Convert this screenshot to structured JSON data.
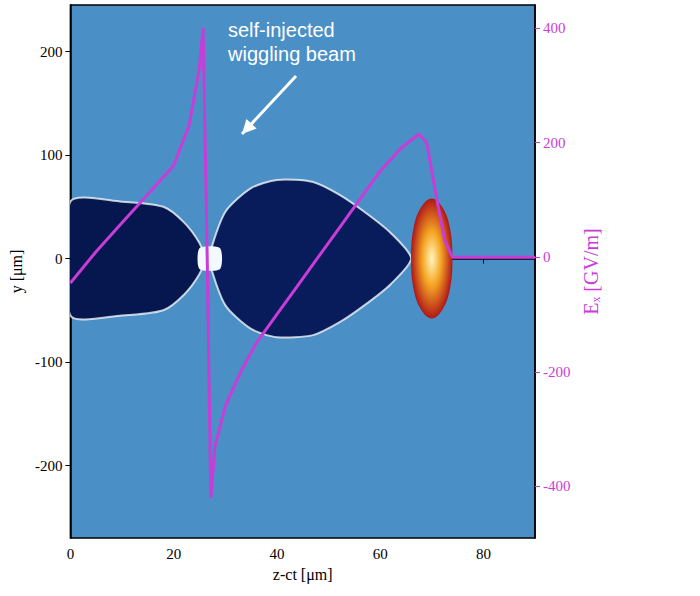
{
  "chart_data": {
    "type": "line",
    "xlabel": "z-ct [μm]",
    "ylabel": "y [μm]",
    "y2label": "Eₓ [GV/m]",
    "xlim": [
      0,
      90
    ],
    "xticks": [
      0,
      20,
      40,
      60,
      80
    ],
    "ylim": [
      -270,
      245
    ],
    "yticks": [
      -200,
      -100,
      0,
      100,
      200
    ],
    "y2lim": [
      -490,
      440
    ],
    "y2ticks": [
      -400,
      -200,
      0,
      200,
      400
    ],
    "grid": false,
    "annotations": [
      {
        "text": "self-injected wiggling beam"
      }
    ],
    "series": [
      {
        "type": "polygon",
        "color": "#06174f",
        "values": [
          [
            0,
            55
          ],
          [
            10,
            55
          ],
          [
            18,
            50
          ],
          [
            22,
            35
          ],
          [
            25,
            15
          ],
          [
            26,
            0
          ],
          [
            25,
            -15
          ],
          [
            22,
            -35
          ],
          [
            18,
            -50
          ],
          [
            10,
            -55
          ],
          [
            0,
            -55
          ]
        ]
      },
      {
        "type": "polygon",
        "color": "#081c5c",
        "values": [
          [
            27,
            5
          ],
          [
            30,
            45
          ],
          [
            35,
            68
          ],
          [
            40,
            76
          ],
          [
            47,
            74
          ],
          [
            52,
            62
          ],
          [
            57,
            45
          ],
          [
            62,
            25
          ],
          [
            66,
            0
          ],
          [
            62,
            -25
          ],
          [
            57,
            -45
          ],
          [
            52,
            -62
          ],
          [
            47,
            -74
          ],
          [
            40,
            -76
          ],
          [
            35,
            -68
          ],
          [
            30,
            -45
          ],
          [
            27,
            -5
          ]
        ]
      },
      {
        "type": "polygon",
        "color": "#f4f8ff",
        "values": [
          [
            25,
            -10
          ],
          [
            29,
            -10
          ],
          [
            29,
            10
          ],
          [
            25,
            10
          ]
        ]
      },
      {
        "type": "polygon",
        "color": "#b01818",
        "values": [
          [
            74,
            0
          ],
          [
            73.5,
            30
          ],
          [
            72,
            50
          ],
          [
            70,
            58
          ],
          [
            68,
            50
          ],
          [
            66.5,
            30
          ],
          [
            66,
            0
          ],
          [
            66.5,
            -30
          ],
          [
            68,
            -50
          ],
          [
            70,
            -58
          ],
          [
            72,
            -50
          ],
          [
            73.5,
            -30
          ]
        ]
      },
      {
        "type": "line",
        "axis": "y2",
        "color": "#c83cd8",
        "values": [
          [
            0,
            -45
          ],
          [
            5,
            10
          ],
          [
            10,
            60
          ],
          [
            15,
            110
          ],
          [
            20,
            160
          ],
          [
            23,
            230
          ],
          [
            25,
            330
          ],
          [
            25.7,
            400
          ],
          [
            26.5,
            0
          ],
          [
            27.2,
            -420
          ],
          [
            28,
            -330
          ],
          [
            30,
            -260
          ],
          [
            33,
            -200
          ],
          [
            36,
            -150
          ],
          [
            40,
            -100
          ],
          [
            44,
            -50
          ],
          [
            48,
            0
          ],
          [
            52,
            50
          ],
          [
            56,
            100
          ],
          [
            60,
            150
          ],
          [
            64,
            190
          ],
          [
            67.5,
            215
          ],
          [
            69,
            200
          ],
          [
            71,
            100
          ],
          [
            72.5,
            30
          ],
          [
            74,
            0
          ],
          [
            90,
            0
          ]
        ]
      }
    ]
  }
}
